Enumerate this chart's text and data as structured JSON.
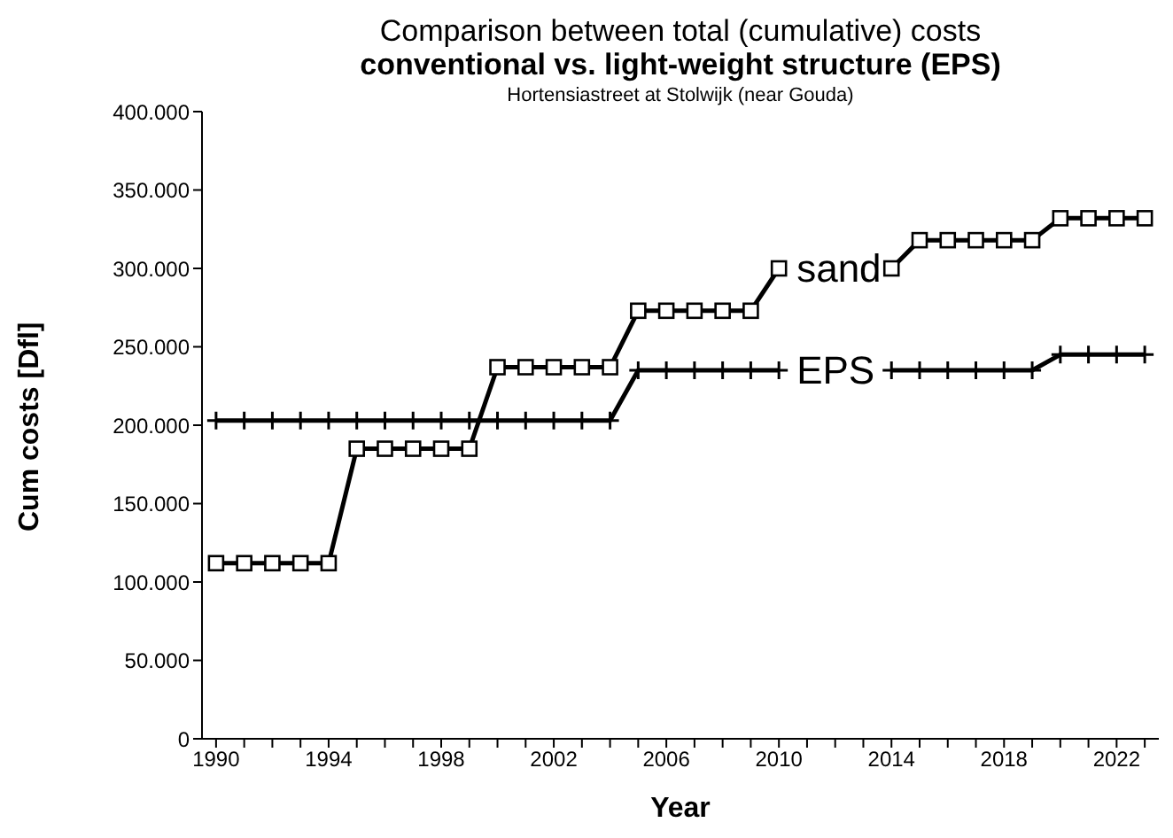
{
  "chart_data": {
    "type": "line",
    "title": "Comparison between total (cumulative) costs",
    "subtitle": "conventional vs. light-weight structure (EPS)",
    "annotations": [
      "Hortensiastreet at Stolwijk (near Gouda)"
    ],
    "xlabel": "Year",
    "ylabel": "Cum costs  [Dfl]",
    "x": [
      1990,
      1991,
      1992,
      1993,
      1994,
      1995,
      1996,
      1997,
      1998,
      1999,
      2000,
      2001,
      2002,
      2003,
      2004,
      2005,
      2006,
      2007,
      2008,
      2009,
      2010,
      2011,
      2012,
      2013,
      2014,
      2015,
      2016,
      2017,
      2018,
      2019,
      2020,
      2021,
      2022,
      2023
    ],
    "series": [
      {
        "name": "sand",
        "color": "#000000",
        "marker": "square",
        "values": [
          112000,
          112000,
          112000,
          112000,
          112000,
          185000,
          185000,
          185000,
          185000,
          185000,
          237000,
          237000,
          237000,
          237000,
          237000,
          273000,
          273000,
          273000,
          273000,
          273000,
          300000,
          null,
          null,
          null,
          300000,
          318000,
          318000,
          318000,
          318000,
          318000,
          332000,
          332000,
          332000,
          332000
        ]
      },
      {
        "name": "EPS",
        "color": "#000000",
        "marker": "cross",
        "values": [
          203000,
          203000,
          203000,
          203000,
          203000,
          203000,
          203000,
          203000,
          203000,
          203000,
          203000,
          203000,
          203000,
          203000,
          203000,
          235000,
          235000,
          235000,
          235000,
          235000,
          235000,
          null,
          null,
          null,
          235000,
          235000,
          235000,
          235000,
          235000,
          235000,
          245000,
          245000,
          245000,
          245000
        ]
      }
    ],
    "xlim": [
      1989.5,
      2023.5
    ],
    "xticks": [
      1990,
      {
        "value": 1991,
        "label": null
      },
      {
        "value": 1992,
        "label": null
      },
      {
        "value": 1993,
        "label": null
      },
      1994,
      {
        "value": 1995,
        "label": null
      },
      {
        "value": 1996,
        "label": null
      },
      {
        "value": 1997,
        "label": null
      },
      1998,
      {
        "value": 1999,
        "label": null
      },
      {
        "value": 2000,
        "label": null
      },
      {
        "value": 2001,
        "label": null
      },
      2002,
      {
        "value": 2003,
        "label": null
      },
      {
        "value": 2004,
        "label": null
      },
      {
        "value": 2005,
        "label": null
      },
      2006,
      {
        "value": 2007,
        "label": null
      },
      {
        "value": 2008,
        "label": null
      },
      {
        "value": 2009,
        "label": null
      },
      2010,
      {
        "value": 2011,
        "label": null
      },
      {
        "value": 2012,
        "label": null
      },
      {
        "value": 2013,
        "label": null
      },
      2014,
      {
        "value": 2015,
        "label": null
      },
      {
        "value": 2016,
        "label": null
      },
      {
        "value": 2017,
        "label": null
      },
      2018,
      {
        "value": 2019,
        "label": null
      },
      {
        "value": 2020,
        "label": null
      },
      {
        "value": 2021,
        "label": null
      },
      2022,
      {
        "value": 2023,
        "label": null
      }
    ],
    "ylim": [
      0,
      400000
    ],
    "yticks": [
      0,
      {
        "value": 50000,
        "label": "50.000"
      },
      {
        "value": 100000,
        "label": "100.000"
      },
      {
        "value": 150000,
        "label": "150.000"
      },
      {
        "value": 200000,
        "label": "200.000"
      },
      {
        "value": 250000,
        "label": "250.000"
      },
      {
        "value": 300000,
        "label": "300.000"
      },
      {
        "value": 350000,
        "label": "350.000"
      },
      {
        "value": 400000,
        "label": "400.000"
      }
    ],
    "grid": false,
    "legend": false,
    "line_style": "solid"
  }
}
